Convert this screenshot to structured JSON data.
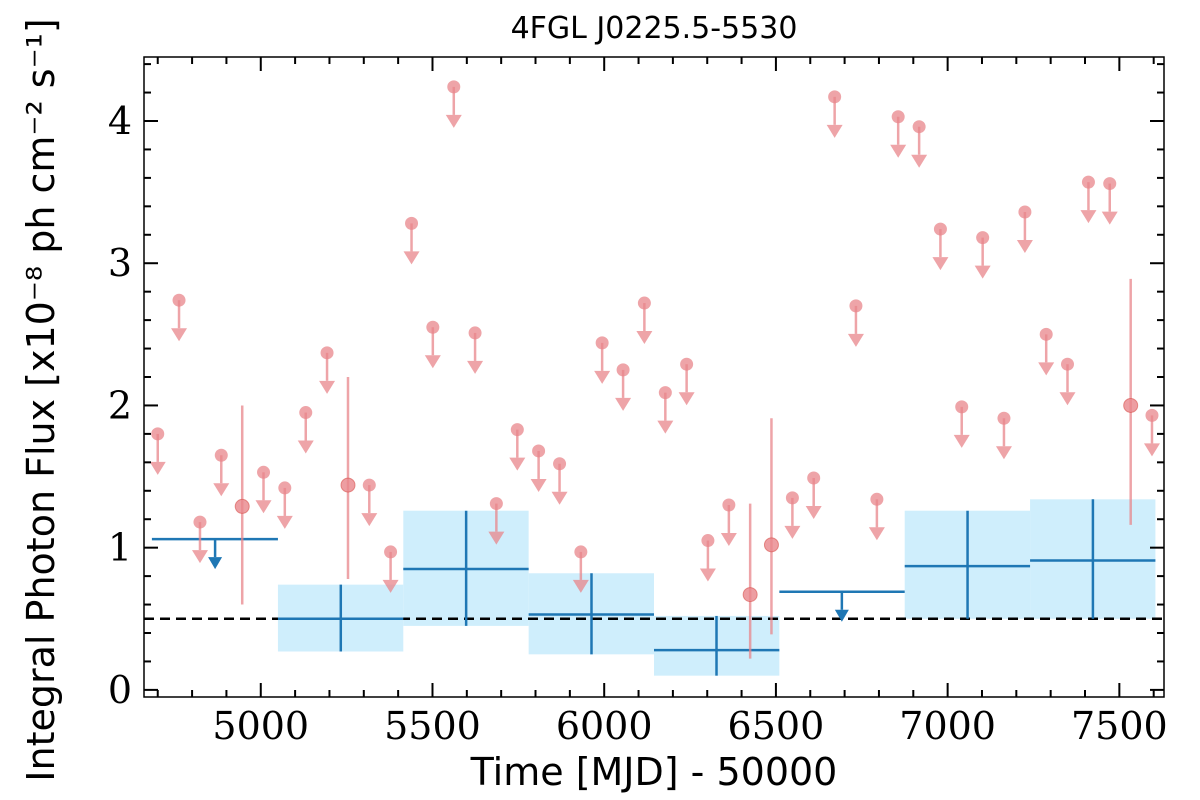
{
  "chart_data": {
    "type": "scatter",
    "title": "4FGL J0225.5-5530",
    "xlabel": "Time [MJD] - 50000",
    "ylabel": "Integral Photon Flux [x10⁻⁸ ph cm⁻² s⁻¹]",
    "xlim": [
      4660,
      7630
    ],
    "ylim": [
      -0.05,
      4.45
    ],
    "xticks": [
      "5000",
      "5500",
      "6000",
      "6500",
      "7000",
      "7500"
    ],
    "yticks": [
      "0",
      "1",
      "2",
      "3",
      "4"
    ],
    "reference_line": {
      "y": 0.5,
      "style": "dashed",
      "color": "#000000"
    },
    "colors": {
      "short_bins": "#e8868b",
      "long_bins": "#1f77b4",
      "long_bins_fill": "#cfeefc"
    },
    "series": [
      {
        "role": "short_bins",
        "upper_limits": [
          [
            4700,
            1.8
          ],
          [
            4762,
            2.74
          ],
          [
            4823,
            1.18
          ],
          [
            4885,
            1.65
          ],
          [
            5008,
            1.53
          ],
          [
            5070,
            1.42
          ],
          [
            5131,
            1.95
          ],
          [
            5193,
            2.37
          ],
          [
            5316,
            1.44
          ],
          [
            5378,
            0.97
          ],
          [
            5439,
            3.28
          ],
          [
            5501,
            2.55
          ],
          [
            5562,
            4.24
          ],
          [
            5624,
            2.51
          ],
          [
            5686,
            1.31
          ],
          [
            5747,
            1.83
          ],
          [
            5809,
            1.68
          ],
          [
            5870,
            1.59
          ],
          [
            5932,
            0.97
          ],
          [
            5994,
            2.44
          ],
          [
            6055,
            2.25
          ],
          [
            6117,
            2.72
          ],
          [
            6178,
            2.09
          ],
          [
            6240,
            2.29
          ],
          [
            6302,
            1.05
          ],
          [
            6363,
            1.3
          ],
          [
            6548,
            1.35
          ],
          [
            6610,
            1.49
          ],
          [
            6671,
            4.17
          ],
          [
            6733,
            2.7
          ],
          [
            6794,
            1.34
          ],
          [
            6856,
            4.03
          ],
          [
            6917,
            3.96
          ],
          [
            6979,
            3.24
          ],
          [
            7041,
            1.99
          ],
          [
            7102,
            3.18
          ],
          [
            7164,
            1.91
          ],
          [
            7225,
            3.36
          ],
          [
            7287,
            2.5
          ],
          [
            7349,
            2.29
          ],
          [
            7410,
            3.57
          ],
          [
            7472,
            3.56
          ],
          [
            7595,
            1.93
          ]
        ],
        "detections": [
          {
            "x": 4946,
            "y": 1.29,
            "ylo": 0.6,
            "yhi": 2.0
          },
          {
            "x": 5254,
            "y": 1.44,
            "ylo": 0.78,
            "yhi": 2.2
          },
          {
            "x": 6425,
            "y": 0.67,
            "ylo": 0.22,
            "yhi": 1.31
          },
          {
            "x": 6487,
            "y": 1.02,
            "ylo": 0.39,
            "yhi": 1.91
          },
          {
            "x": 7533,
            "y": 2.0,
            "ylo": 1.16,
            "yhi": 2.89
          }
        ]
      },
      {
        "role": "long_bins",
        "upper_limits": [
          {
            "x": 4867,
            "x0": 4683,
            "x1": 5050,
            "y": 1.06
          },
          {
            "x": 6692,
            "x0": 6510,
            "x1": 6875,
            "y": 0.69
          }
        ],
        "detections": [
          {
            "x": 5233,
            "x0": 5050,
            "x1": 5415,
            "y": 0.5,
            "ylo": 0.27,
            "yhi": 0.74
          },
          {
            "x": 5598,
            "x0": 5415,
            "x1": 5780,
            "y": 0.85,
            "ylo": 0.45,
            "yhi": 1.26
          },
          {
            "x": 5963,
            "x0": 5780,
            "x1": 6145,
            "y": 0.53,
            "ylo": 0.25,
            "yhi": 0.82
          },
          {
            "x": 6327,
            "x0": 6145,
            "x1": 6510,
            "y": 0.28,
            "ylo": 0.1,
            "yhi": 0.52
          },
          {
            "x": 7058,
            "x0": 6875,
            "x1": 7240,
            "y": 0.87,
            "ylo": 0.5,
            "yhi": 1.26
          },
          {
            "x": 7423,
            "x0": 7240,
            "x1": 7605,
            "y": 0.91,
            "ylo": 0.5,
            "yhi": 1.34
          }
        ]
      }
    ]
  }
}
